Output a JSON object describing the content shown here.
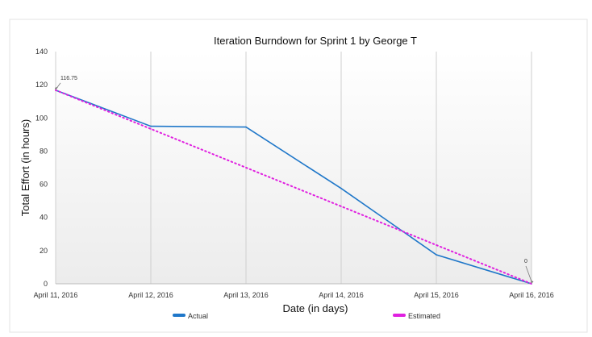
{
  "chart_data": {
    "type": "line",
    "title": "Iteration Burndown for Sprint 1 by George T",
    "xlabel": "Date (in days)",
    "ylabel": "Total Effort (in hours)",
    "categories": [
      "April 11, 2016",
      "April 12, 2016",
      "April 13, 2016",
      "April 14, 2016",
      "April 15, 2016",
      "April 16, 2016"
    ],
    "ylim": [
      0,
      140
    ],
    "yticks": [
      0,
      20,
      40,
      60,
      80,
      100,
      120,
      140
    ],
    "grid": "vertical",
    "legend_position": "bottom",
    "series": [
      {
        "name": "Actual",
        "style": "solid",
        "color": "#1f77c9",
        "values": [
          116.75,
          95,
          94.5,
          57.5,
          17.5,
          0
        ]
      },
      {
        "name": "Estimated",
        "style": "dotted",
        "color": "#e020e0",
        "values": [
          116.75,
          93.4,
          70.05,
          46.7,
          23.35,
          0
        ]
      }
    ],
    "annotations": [
      {
        "text": "116.75",
        "x": "April 11, 2016",
        "y": 116.75
      },
      {
        "text": "0",
        "x": "April 16, 2016",
        "y": 0
      }
    ]
  }
}
